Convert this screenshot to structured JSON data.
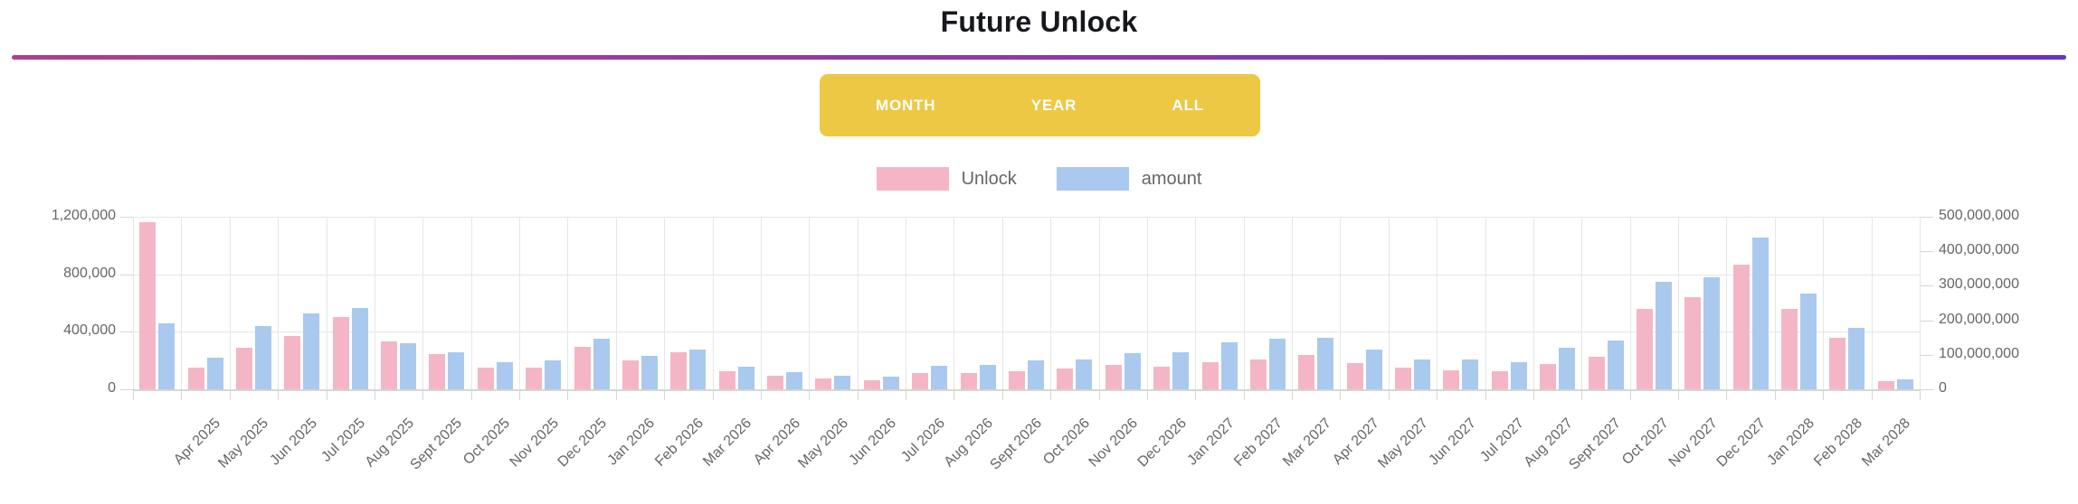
{
  "title": "Future Unlock",
  "divider": {
    "color_start": "#b23c95",
    "color_end": "#6633c6"
  },
  "range_buttons": {
    "background": "#edc844",
    "text_color": "#ffffff",
    "items": [
      {
        "label": "MONTH"
      },
      {
        "label": "YEAR"
      },
      {
        "label": "ALL"
      }
    ]
  },
  "legend": {
    "items": [
      {
        "label": "Unlock",
        "color": "#f4b6c6"
      },
      {
        "label": "amount",
        "color": "#a9c9ef"
      }
    ]
  },
  "chart_data": {
    "type": "bar",
    "title": "Future Unlock",
    "grid": true,
    "legend_position": "top",
    "categories": [
      "",
      "Apr 2025",
      "May 2025",
      "Jun 2025",
      "Jul 2025",
      "Aug 2025",
      "Sept 2025",
      "Oct 2025",
      "Nov 2025",
      "Dec 2025",
      "Jan 2026",
      "Feb 2026",
      "Mar 2026",
      "Apr 2026",
      "May 2026",
      "Jun 2026",
      "Jul 2026",
      "Aug 2026",
      "Sept 2026",
      "Oct 2026",
      "Nov 2026",
      "Dec 2026",
      "Jan 2027",
      "Feb 2027",
      "Mar 2027",
      "Apr 2027",
      "May 2027",
      "Jun 2027",
      "Jul 2027",
      "Aug 2027",
      "Sept 2027",
      "Oct 2027",
      "Nov 2027",
      "Dec 2027",
      "Jan 2028",
      "Feb 2028",
      "Mar 2028"
    ],
    "series": [
      {
        "name": "Unlock",
        "axis": "left",
        "color": "#f4b6c6",
        "values": [
          1160000,
          150000,
          290000,
          370000,
          505000,
          330000,
          245000,
          150000,
          150000,
          295000,
          200000,
          260000,
          125000,
          95000,
          75000,
          65000,
          115000,
          115000,
          125000,
          145000,
          170000,
          155000,
          190000,
          205000,
          240000,
          180000,
          150000,
          130000,
          125000,
          175000,
          225000,
          560000,
          640000,
          870000,
          560000,
          355000,
          55000
        ]
      },
      {
        "name": "amount",
        "axis": "right",
        "color": "#a9c9ef",
        "values": [
          190000000,
          92000000,
          184000000,
          219000000,
          235000000,
          134000000,
          108000000,
          79000000,
          84000000,
          147000000,
          97000000,
          116000000,
          66000000,
          50000000,
          39000000,
          37000000,
          68000000,
          71000000,
          84000000,
          87000000,
          105000000,
          108000000,
          137000000,
          147000000,
          150000000,
          116000000,
          87000000,
          87000000,
          79000000,
          121000000,
          142000000,
          312000000,
          325000000,
          440000000,
          277000000,
          177000000,
          28000000
        ]
      }
    ],
    "left_axis": {
      "max": 1200000,
      "tick_step": 400000,
      "ticks": [
        "1,200,000",
        "800,000",
        "400,000",
        "0"
      ]
    },
    "right_axis": {
      "max": 500000000,
      "tick_step": 100000000,
      "ticks": [
        "500,000,000",
        "400,000,000",
        "300,000,000",
        "200,000,000",
        "100,000,000",
        "0"
      ]
    }
  }
}
